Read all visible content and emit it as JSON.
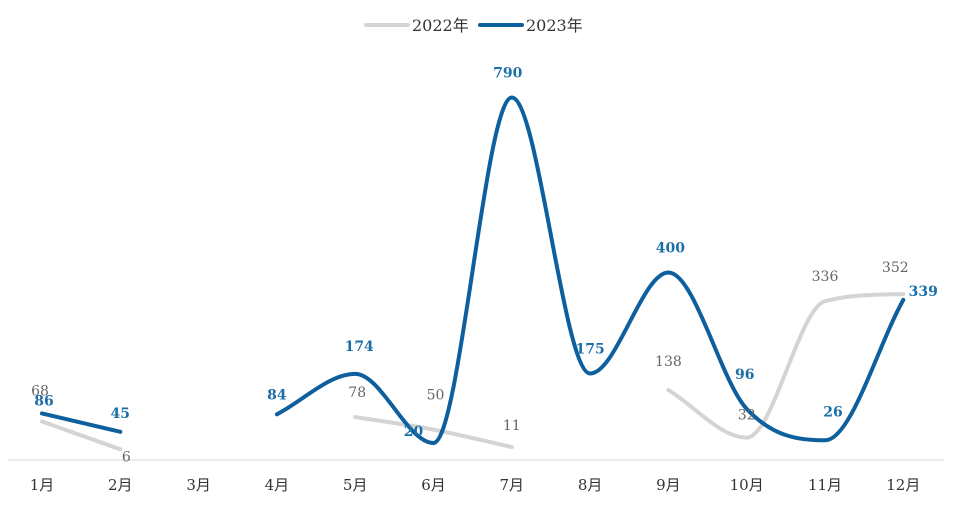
{
  "chart_data": {
    "type": "line",
    "categories": [
      "1月",
      "2月",
      "3月",
      "4月",
      "5月",
      "6月",
      "7月",
      "8月",
      "9月",
      "10月",
      "11月",
      "12月"
    ],
    "series": [
      {
        "name": "2022年",
        "color": "#d4d4d4",
        "values": [
          68,
          6,
          null,
          null,
          78,
          50,
          11,
          null,
          138,
          32,
          336,
          352
        ],
        "labels": [
          "68",
          "6",
          "",
          "",
          "78",
          "50",
          "11",
          "",
          "138",
          "32",
          "336",
          "352"
        ]
      },
      {
        "name": "2023年",
        "color": "#0d5f9e",
        "values": [
          86,
          45,
          null,
          84,
          174,
          20,
          790,
          175,
          400,
          96,
          26,
          339
        ],
        "labels": [
          "86",
          "45",
          "",
          "84",
          "174",
          "20",
          "790",
          "175",
          "400",
          "96",
          "26",
          "339"
        ]
      }
    ],
    "label_color_2023": "#1a6fa8",
    "ylim": [
      0,
      800
    ],
    "legend_position": "top-center",
    "grid": false,
    "smooth": true
  }
}
